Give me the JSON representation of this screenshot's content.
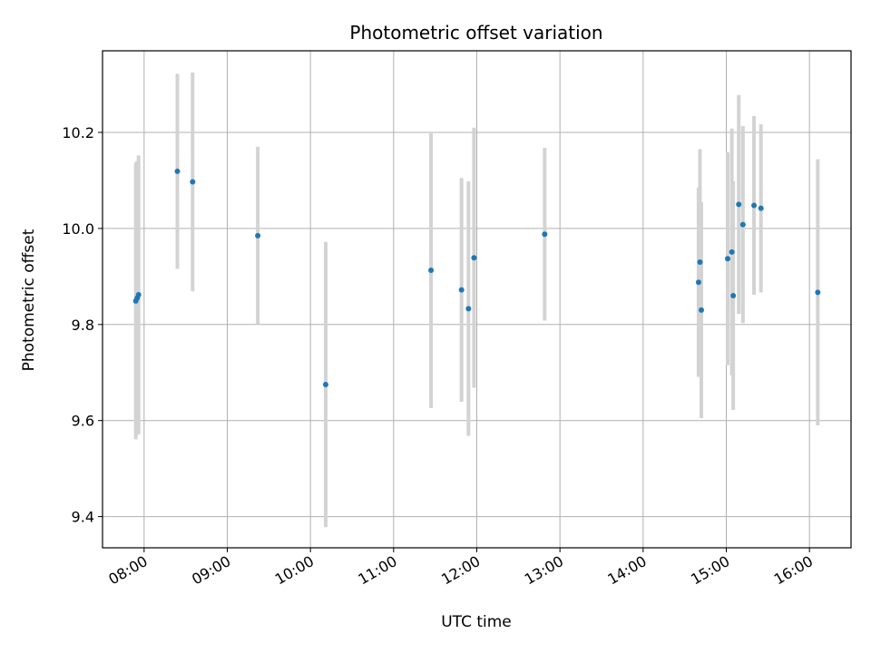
{
  "chart_data": {
    "type": "scatter",
    "title": "Photometric offset variation",
    "xlabel": "UTC time",
    "ylabel": "Photometric offset",
    "x_ticks": [
      "08:00",
      "09:00",
      "10:00",
      "11:00",
      "12:00",
      "13:00",
      "14:00",
      "15:00",
      "16:00"
    ],
    "y_ticks": [
      "9.4",
      "9.6",
      "9.8",
      "10.0",
      "10.2"
    ],
    "xlim": [
      "07:30",
      "16:30"
    ],
    "ylim": [
      9.335,
      10.37
    ],
    "grid": true,
    "colors": {
      "point": "#1f77b4",
      "errorbar": "#d3d3d3",
      "grid": "#b0b0b0"
    },
    "points": [
      {
        "x": "07:54",
        "y": 9.849,
        "yerr": 0.288
      },
      {
        "x": "07:55",
        "y": 9.855,
        "yerr": 0.285
      },
      {
        "x": "07:56",
        "y": 9.862,
        "yerr": 0.29
      },
      {
        "x": "08:24",
        "y": 10.119,
        "yerr": 0.203
      },
      {
        "x": "08:35",
        "y": 10.097,
        "yerr": 0.228
      },
      {
        "x": "09:22",
        "y": 9.985,
        "yerr": 0.185
      },
      {
        "x": "10:11",
        "y": 9.675,
        "yerr": 0.297
      },
      {
        "x": "11:27",
        "y": 9.913,
        "yerr": 0.287
      },
      {
        "x": "11:49",
        "y": 9.872,
        "yerr": 0.233
      },
      {
        "x": "11:54",
        "y": 9.833,
        "yerr": 0.265
      },
      {
        "x": "11:58",
        "y": 9.939,
        "yerr": 0.271
      },
      {
        "x": "12:49",
        "y": 9.988,
        "yerr": 0.18
      },
      {
        "x": "14:40",
        "y": 9.888,
        "yerr": 0.197
      },
      {
        "x": "14:41",
        "y": 9.93,
        "yerr": 0.235
      },
      {
        "x": "14:42",
        "y": 9.83,
        "yerr": 0.225
      },
      {
        "x": "15:01",
        "y": 9.937,
        "yerr": 0.222
      },
      {
        "x": "15:04",
        "y": 9.951,
        "yerr": 0.257
      },
      {
        "x": "15:05",
        "y": 9.86,
        "yerr": 0.238
      },
      {
        "x": "15:09",
        "y": 10.05,
        "yerr": 0.228
      },
      {
        "x": "15:12",
        "y": 10.008,
        "yerr": 0.205
      },
      {
        "x": "15:20",
        "y": 10.048,
        "yerr": 0.186
      },
      {
        "x": "15:25",
        "y": 10.042,
        "yerr": 0.175
      },
      {
        "x": "16:06",
        "y": 9.867,
        "yerr": 0.277
      }
    ]
  }
}
